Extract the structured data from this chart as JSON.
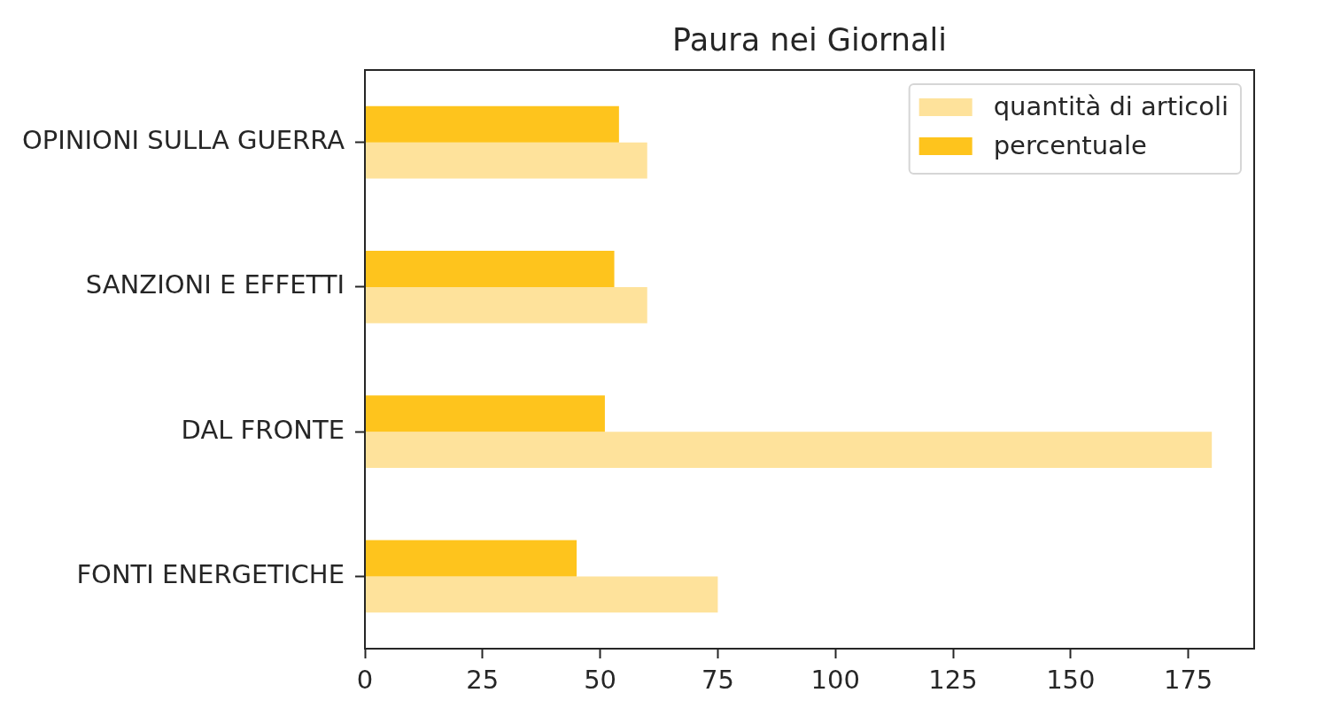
{
  "chart_data": {
    "type": "bar",
    "orientation": "horizontal",
    "title": "Paura nei Giornali",
    "categories": [
      "OPINIONI SULLA GUERRA",
      "SANZIONI E EFFETTI",
      "DAL FRONTE",
      "FONTI ENERGETICHE"
    ],
    "series": [
      {
        "name": "quantità di articoli",
        "color": "#fee29b",
        "values": [
          60,
          60,
          180,
          75
        ]
      },
      {
        "name": "percentuale",
        "color": "#fec41d",
        "values": [
          54,
          53,
          51,
          45
        ]
      }
    ],
    "xlim": [
      0,
      189
    ],
    "xticks": [
      0,
      25,
      50,
      75,
      100,
      125,
      150,
      175
    ],
    "legend": "top right"
  }
}
